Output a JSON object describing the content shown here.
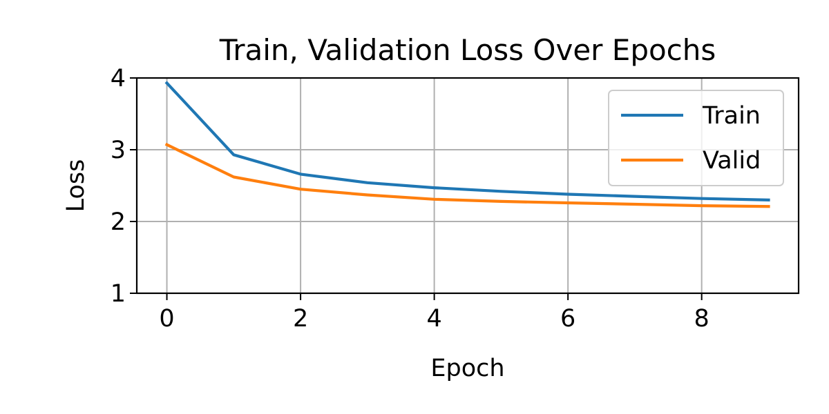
{
  "chart_data": {
    "type": "line",
    "title": "Train, Validation Loss Over Epochs",
    "xlabel": "Epoch",
    "ylabel": "Loss",
    "x": [
      0,
      1,
      2,
      3,
      4,
      5,
      6,
      7,
      8,
      9
    ],
    "xlim": [
      -0.45,
      9.45
    ],
    "ylim": [
      1,
      4
    ],
    "xticks": [
      0,
      2,
      4,
      6,
      8
    ],
    "yticks": [
      1,
      2,
      3,
      4
    ],
    "grid": true,
    "legend_position": "top-right",
    "series": [
      {
        "name": "Train",
        "color": "#1f77b4",
        "values": [
          3.93,
          2.93,
          2.66,
          2.54,
          2.47,
          2.42,
          2.38,
          2.35,
          2.32,
          2.3
        ]
      },
      {
        "name": "Valid",
        "color": "#ff7f0e",
        "values": [
          3.07,
          2.62,
          2.45,
          2.37,
          2.31,
          2.28,
          2.26,
          2.24,
          2.22,
          2.21
        ]
      }
    ]
  }
}
